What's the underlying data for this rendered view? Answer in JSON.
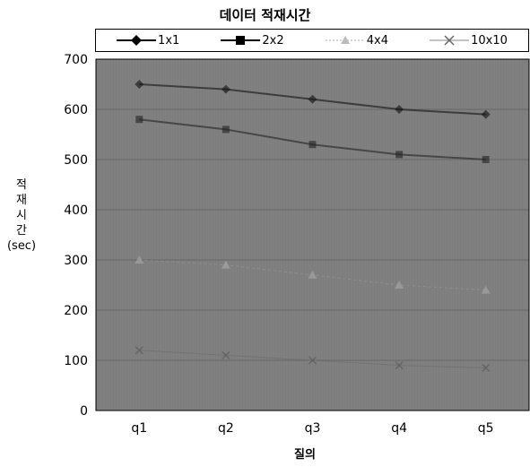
{
  "chart_data": {
    "type": "line",
    "title": "데이터 적재시간",
    "xlabel": "질의",
    "ylabel_lines": [
      "적",
      "재",
      "시",
      "간",
      "(sec)"
    ],
    "categories": [
      "q1",
      "q2",
      "q3",
      "q4",
      "q5"
    ],
    "ylim": [
      0,
      700
    ],
    "yticks": [
      "0",
      "100",
      "200",
      "300",
      "400",
      "500",
      "600",
      "700"
    ],
    "grid": true,
    "legend_position": "top",
    "series": [
      {
        "name": "1x1",
        "values": [
          650,
          640,
          620,
          600,
          590
        ],
        "marker": "diamond"
      },
      {
        "name": "2x2",
        "values": [
          580,
          560,
          530,
          510,
          500
        ],
        "marker": "square"
      },
      {
        "name": "4x4",
        "values": [
          300,
          290,
          270,
          250,
          240
        ],
        "marker": "triangle"
      },
      {
        "name": "10x10",
        "values": [
          120,
          110,
          100,
          90,
          85
        ],
        "marker": "x"
      }
    ],
    "colors": {
      "plot_background": "#7d7d7d",
      "line": "#000000"
    }
  }
}
